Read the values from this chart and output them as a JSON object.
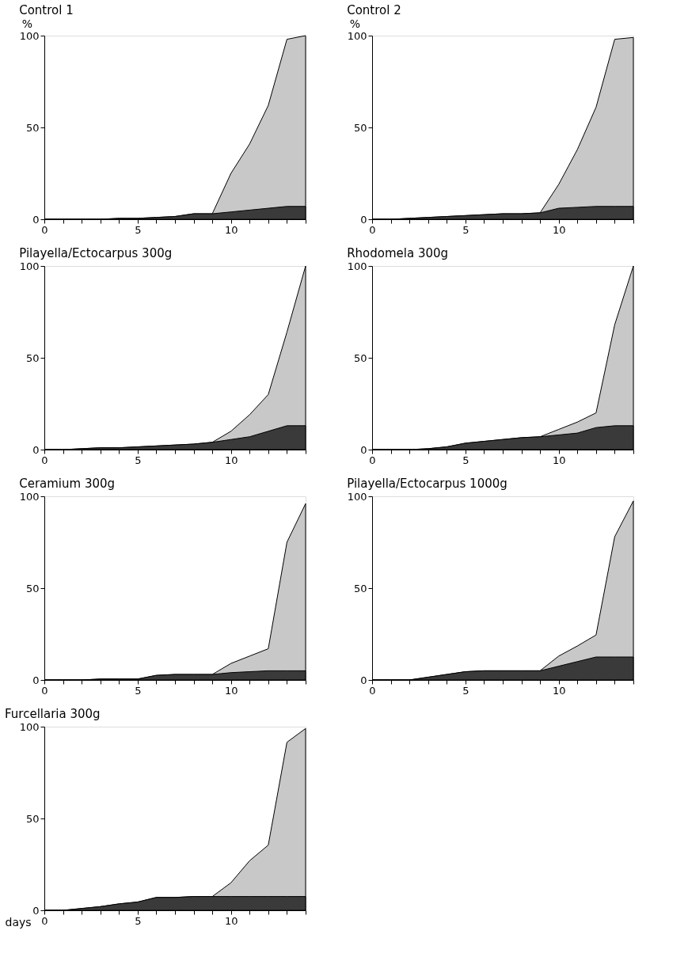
{
  "chart_data": [
    {
      "type": "area",
      "title": "Control 1",
      "ylabel": "%",
      "x": [
        0,
        1,
        2,
        3,
        4,
        5,
        6,
        7,
        8,
        9,
        10,
        11,
        12,
        13,
        14
      ],
      "xlim": [
        0,
        14
      ],
      "ylim": [
        0,
        100
      ],
      "yticks": [
        0,
        50,
        100
      ],
      "xticks": [
        0,
        {
          "value": 1,
          "label": null
        },
        {
          "value": 2,
          "label": null
        },
        {
          "value": 3,
          "label": null
        },
        {
          "value": 4,
          "label": null
        },
        5,
        {
          "value": 6,
          "label": null
        },
        {
          "value": 7,
          "label": null
        },
        {
          "value": 8,
          "label": null
        },
        {
          "value": 9,
          "label": null
        },
        10,
        {
          "value": 11,
          "label": null
        },
        {
          "value": 12,
          "label": null
        },
        {
          "value": 13,
          "label": null
        },
        {
          "value": 14,
          "label": null
        }
      ],
      "series": [
        {
          "color": "#c8c8c8",
          "values": [
            0,
            0,
            0,
            0,
            0.5,
            0.5,
            1,
            1.5,
            3,
            3,
            25,
            41,
            62,
            98,
            100
          ]
        },
        {
          "color": "#3a3a3a",
          "values": [
            0,
            0,
            0,
            0,
            0.5,
            0.5,
            1,
            1.5,
            3,
            3,
            4,
            5,
            6,
            7,
            7
          ]
        }
      ]
    },
    {
      "type": "area",
      "title": "Control 2",
      "ylabel": "%",
      "x": [
        0,
        1,
        2,
        3,
        4,
        5,
        6,
        7,
        8,
        9,
        10,
        11,
        12,
        13,
        14
      ],
      "xlim": [
        0,
        14
      ],
      "ylim": [
        0,
        100
      ],
      "yticks": [
        0,
        50,
        100
      ],
      "xticks": [
        0,
        {
          "value": 1,
          "label": null
        },
        {
          "value": 2,
          "label": null
        },
        {
          "value": 3,
          "label": null
        },
        {
          "value": 4,
          "label": null
        },
        5,
        {
          "value": 6,
          "label": null
        },
        {
          "value": 7,
          "label": null
        },
        {
          "value": 8,
          "label": null
        },
        {
          "value": 9,
          "label": null
        },
        10,
        {
          "value": 11,
          "label": null
        },
        {
          "value": 12,
          "label": null
        },
        {
          "value": 13,
          "label": null
        },
        {
          "value": 14,
          "label": null
        }
      ],
      "series": [
        {
          "color": "#c8c8c8",
          "values": [
            0,
            0,
            0.5,
            1,
            1.5,
            2,
            2.5,
            3,
            3,
            3.5,
            19,
            38,
            61,
            98,
            99
          ]
        },
        {
          "color": "#3a3a3a",
          "values": [
            0,
            0,
            0.5,
            1,
            1.5,
            2,
            2.5,
            3,
            3,
            3.5,
            6,
            6.5,
            7,
            7,
            7
          ]
        }
      ]
    },
    {
      "type": "area",
      "title": "Pilayella/Ectocarpus 300g",
      "x": [
        0,
        1,
        2,
        3,
        4,
        5,
        6,
        7,
        8,
        9,
        10,
        11,
        12,
        13,
        14
      ],
      "xlim": [
        0,
        14
      ],
      "ylim": [
        0,
        100
      ],
      "yticks": [
        0,
        50,
        100
      ],
      "xticks": [
        0,
        {
          "value": 1,
          "label": null
        },
        {
          "value": 2,
          "label": null
        },
        {
          "value": 3,
          "label": null
        },
        {
          "value": 4,
          "label": null
        },
        5,
        {
          "value": 6,
          "label": null
        },
        {
          "value": 7,
          "label": null
        },
        {
          "value": 8,
          "label": null
        },
        {
          "value": 9,
          "label": null
        },
        10,
        {
          "value": 11,
          "label": null
        },
        {
          "value": 12,
          "label": null
        },
        {
          "value": 13,
          "label": null
        },
        {
          "value": 14,
          "label": null
        }
      ],
      "series": [
        {
          "color": "#c8c8c8",
          "values": [
            0,
            0,
            0.5,
            1,
            1,
            1.5,
            2,
            2.5,
            3,
            4,
            10,
            19,
            30,
            64,
            100
          ]
        },
        {
          "color": "#3a3a3a",
          "values": [
            0,
            0,
            0.5,
            1,
            1,
            1.5,
            2,
            2.5,
            3,
            4,
            5.5,
            7,
            10,
            13,
            13
          ]
        }
      ]
    },
    {
      "type": "area",
      "title": "Rhodomela 300g",
      "x": [
        0,
        1,
        2,
        3,
        4,
        5,
        6,
        7,
        8,
        9,
        10,
        11,
        12,
        13,
        14
      ],
      "xlim": [
        0,
        14
      ],
      "ylim": [
        0,
        100
      ],
      "yticks": [
        0,
        50,
        100
      ],
      "xticks": [
        0,
        {
          "value": 1,
          "label": null
        },
        {
          "value": 2,
          "label": null
        },
        {
          "value": 3,
          "label": null
        },
        {
          "value": 4,
          "label": null
        },
        5,
        {
          "value": 6,
          "label": null
        },
        {
          "value": 7,
          "label": null
        },
        {
          "value": 8,
          "label": null
        },
        {
          "value": 9,
          "label": null
        },
        10,
        {
          "value": 11,
          "label": null
        },
        {
          "value": 12,
          "label": null
        },
        {
          "value": 13,
          "label": null
        },
        {
          "value": 14,
          "label": null
        }
      ],
      "series": [
        {
          "color": "#c8c8c8",
          "values": [
            0,
            0,
            0,
            0.5,
            1.5,
            3.5,
            4.5,
            5.5,
            6.5,
            7,
            11,
            15,
            20,
            68,
            100
          ]
        },
        {
          "color": "#3a3a3a",
          "values": [
            0,
            0,
            0,
            0.5,
            1.5,
            3.5,
            4.5,
            5.5,
            6.5,
            7,
            8,
            9,
            12,
            13,
            13
          ]
        }
      ]
    },
    {
      "type": "area",
      "title": "Ceramium 300g",
      "x": [
        0,
        1,
        2,
        3,
        4,
        5,
        6,
        7,
        8,
        9,
        10,
        11,
        12,
        13,
        14
      ],
      "xlim": [
        0,
        14
      ],
      "ylim": [
        0,
        100
      ],
      "yticks": [
        0,
        50,
        100
      ],
      "xticks": [
        0,
        {
          "value": 1,
          "label": null
        },
        {
          "value": 2,
          "label": null
        },
        {
          "value": 3,
          "label": null
        },
        {
          "value": 4,
          "label": null
        },
        5,
        {
          "value": 6,
          "label": null
        },
        {
          "value": 7,
          "label": null
        },
        {
          "value": 8,
          "label": null
        },
        {
          "value": 9,
          "label": null
        },
        10,
        {
          "value": 11,
          "label": null
        },
        {
          "value": 12,
          "label": null
        },
        {
          "value": 13,
          "label": null
        },
        {
          "value": 14,
          "label": null
        }
      ],
      "series": [
        {
          "color": "#c8c8c8",
          "values": [
            0,
            0,
            0,
            0.5,
            0.5,
            0.5,
            2.5,
            3,
            3,
            3,
            9,
            13,
            17,
            75,
            96
          ]
        },
        {
          "color": "#3a3a3a",
          "values": [
            0,
            0,
            0,
            0.5,
            0.5,
            0.5,
            2.5,
            3,
            3,
            3,
            4,
            4.5,
            5,
            5,
            5
          ]
        }
      ]
    },
    {
      "type": "area",
      "title": "Pilayella/Ectocarpus 1000g",
      "x": [
        0,
        1,
        2,
        3,
        4,
        5,
        6,
        7,
        8,
        9,
        10,
        11,
        12,
        13,
        14
      ],
      "xlim": [
        0,
        14
      ],
      "ylim": [
        0,
        100
      ],
      "yticks": [
        0,
        50,
        100
      ],
      "xticks": [
        0,
        {
          "value": 1,
          "label": null
        },
        {
          "value": 2,
          "label": null
        },
        {
          "value": 3,
          "label": null
        },
        {
          "value": 4,
          "label": null
        },
        5,
        {
          "value": 6,
          "label": null
        },
        {
          "value": 7,
          "label": null
        },
        {
          "value": 8,
          "label": null
        },
        {
          "value": 9,
          "label": null
        },
        10,
        {
          "value": 11,
          "label": null
        },
        {
          "value": 12,
          "label": null
        },
        {
          "value": 13,
          "label": null
        },
        {
          "value": 14,
          "label": null
        }
      ],
      "series": [
        {
          "color": "#c8c8c8",
          "values": [
            0,
            0,
            0,
            1.5,
            3,
            4.5,
            5,
            5,
            5,
            5,
            13,
            18.5,
            24.5,
            78,
            97.5
          ]
        },
        {
          "color": "#3a3a3a",
          "values": [
            0,
            0,
            0,
            1.5,
            3,
            4.5,
            5,
            5,
            5,
            5,
            7.5,
            10,
            12.5,
            12.5,
            12.5
          ]
        }
      ]
    },
    {
      "type": "area",
      "title": "Furcellaria 300g",
      "xlabel": "days",
      "x": [
        0,
        1,
        2,
        3,
        4,
        5,
        6,
        7,
        8,
        9,
        10,
        11,
        12,
        13,
        14
      ],
      "xlim": [
        0,
        14
      ],
      "ylim": [
        0,
        100
      ],
      "yticks": [
        0,
        50,
        100
      ],
      "xticks": [
        0,
        {
          "value": 1,
          "label": null
        },
        {
          "value": 2,
          "label": null
        },
        {
          "value": 3,
          "label": null
        },
        {
          "value": 4,
          "label": null
        },
        5,
        {
          "value": 6,
          "label": null
        },
        {
          "value": 7,
          "label": null
        },
        {
          "value": 8,
          "label": null
        },
        {
          "value": 9,
          "label": null
        },
        10,
        {
          "value": 11,
          "label": null
        },
        {
          "value": 12,
          "label": null
        },
        {
          "value": 13,
          "label": null
        },
        {
          "value": 14,
          "label": null
        }
      ],
      "series": [
        {
          "color": "#c8c8c8",
          "values": [
            0,
            0,
            1,
            2,
            3.5,
            4.5,
            7,
            7,
            7.5,
            7.5,
            15,
            27,
            35.5,
            91.5,
            99
          ]
        },
        {
          "color": "#3a3a3a",
          "values": [
            0,
            0,
            1,
            2,
            3.5,
            4.5,
            7,
            7,
            7.5,
            7.5,
            7.5,
            7.5,
            7.5,
            7.5,
            7.5
          ]
        }
      ]
    }
  ]
}
